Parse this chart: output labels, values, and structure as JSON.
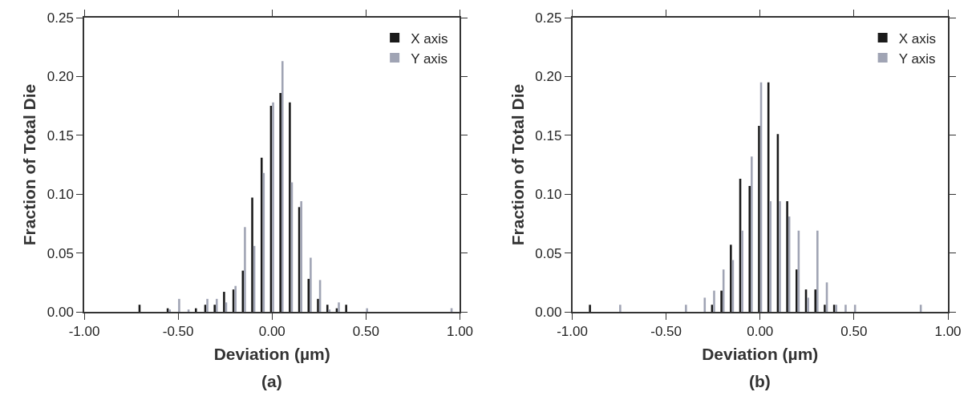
{
  "chart_data": [
    {
      "type": "bar",
      "xlabel": "Deviation (µm)",
      "ylabel": "Fraction of Total Die",
      "annotations": [
        "(a)"
      ],
      "xlim": [
        -1.0,
        1.0
      ],
      "xticks": [
        {
          "value": -1.0,
          "label": "-1.00"
        },
        {
          "value": -0.5,
          "label": "-0.50"
        },
        {
          "value": 0.0,
          "label": "0.00"
        },
        {
          "value": 0.5,
          "label": "0.50"
        },
        {
          "value": 1.0,
          "label": "1.00"
        }
      ],
      "ylim": [
        0,
        0.25
      ],
      "yticks": [
        {
          "value": 0,
          "label": "0.00"
        },
        {
          "value": 0.05,
          "label": "0.05"
        },
        {
          "value": 0.1,
          "label": "0.10"
        },
        {
          "value": 0.15,
          "label": "0.15"
        },
        {
          "value": 0.2,
          "label": "0.20"
        },
        {
          "value": 0.25,
          "label": "0.25"
        }
      ],
      "legend": "top right",
      "series": [
        {
          "name": "X axis",
          "color": "#1a1a1a",
          "x": [
            -0.7,
            -0.55,
            -0.4,
            -0.35,
            -0.3,
            -0.25,
            -0.2,
            -0.15,
            -0.1,
            -0.05,
            0.0,
            0.05,
            0.1,
            0.15,
            0.2,
            0.25,
            0.3,
            0.35,
            0.4
          ],
          "values": [
            0.006,
            0.003,
            0.003,
            0.006,
            0.006,
            0.017,
            0.019,
            0.035,
            0.097,
            0.131,
            0.175,
            0.186,
            0.178,
            0.089,
            0.028,
            0.011,
            0.006,
            0.003,
            0.006
          ]
        },
        {
          "name": "Y axis",
          "color": "#a0a4b4",
          "x": [
            -0.55,
            -0.5,
            -0.45,
            -0.35,
            -0.3,
            -0.25,
            -0.2,
            -0.15,
            -0.1,
            -0.05,
            0.0,
            0.05,
            0.1,
            0.15,
            0.2,
            0.25,
            0.3,
            0.35,
            0.5,
            0.95
          ],
          "values": [
            0.002,
            0.011,
            0.002,
            0.011,
            0.011,
            0.008,
            0.022,
            0.072,
            0.056,
            0.118,
            0.178,
            0.213,
            0.11,
            0.094,
            0.046,
            0.027,
            0.002,
            0.008,
            0.003,
            0.003
          ]
        }
      ]
    },
    {
      "type": "bar",
      "xlabel": "Deviation (µm)",
      "ylabel": "Fraction of Total Die",
      "annotations": [
        "(b)"
      ],
      "xlim": [
        -1.0,
        1.0
      ],
      "xticks": [
        {
          "value": -1.0,
          "label": "-1.00"
        },
        {
          "value": -0.5,
          "label": "-0.50"
        },
        {
          "value": 0.0,
          "label": "0.00"
        },
        {
          "value": 0.5,
          "label": "0.50"
        },
        {
          "value": 1.0,
          "label": "1.00"
        }
      ],
      "ylim": [
        0,
        0.25
      ],
      "yticks": [
        {
          "value": 0,
          "label": "0.00"
        },
        {
          "value": 0.05,
          "label": "0.05"
        },
        {
          "value": 0.1,
          "label": "0.10"
        },
        {
          "value": 0.15,
          "label": "0.15"
        },
        {
          "value": 0.2,
          "label": "0.20"
        },
        {
          "value": 0.25,
          "label": "0.25"
        }
      ],
      "legend": "top right",
      "series": [
        {
          "name": "X axis",
          "color": "#1a1a1a",
          "x": [
            -0.9,
            -0.25,
            -0.2,
            -0.15,
            -0.1,
            -0.05,
            0.0,
            0.05,
            0.1,
            0.15,
            0.2,
            0.25,
            0.3,
            0.35,
            0.4
          ],
          "values": [
            0.006,
            0.006,
            0.018,
            0.057,
            0.113,
            0.107,
            0.158,
            0.195,
            0.151,
            0.094,
            0.036,
            0.019,
            0.019,
            0.006,
            0.006
          ]
        },
        {
          "name": "Y axis",
          "color": "#a0a4b4",
          "x": [
            -0.75,
            -0.4,
            -0.3,
            -0.25,
            -0.2,
            -0.15,
            -0.1,
            -0.05,
            0.0,
            0.05,
            0.1,
            0.15,
            0.2,
            0.25,
            0.3,
            0.35,
            0.4,
            0.45,
            0.5,
            0.85
          ],
          "values": [
            0.006,
            0.006,
            0.012,
            0.018,
            0.036,
            0.044,
            0.069,
            0.132,
            0.195,
            0.094,
            0.094,
            0.081,
            0.069,
            0.012,
            0.069,
            0.025,
            0.006,
            0.006,
            0.006,
            0.006
          ]
        }
      ]
    }
  ]
}
